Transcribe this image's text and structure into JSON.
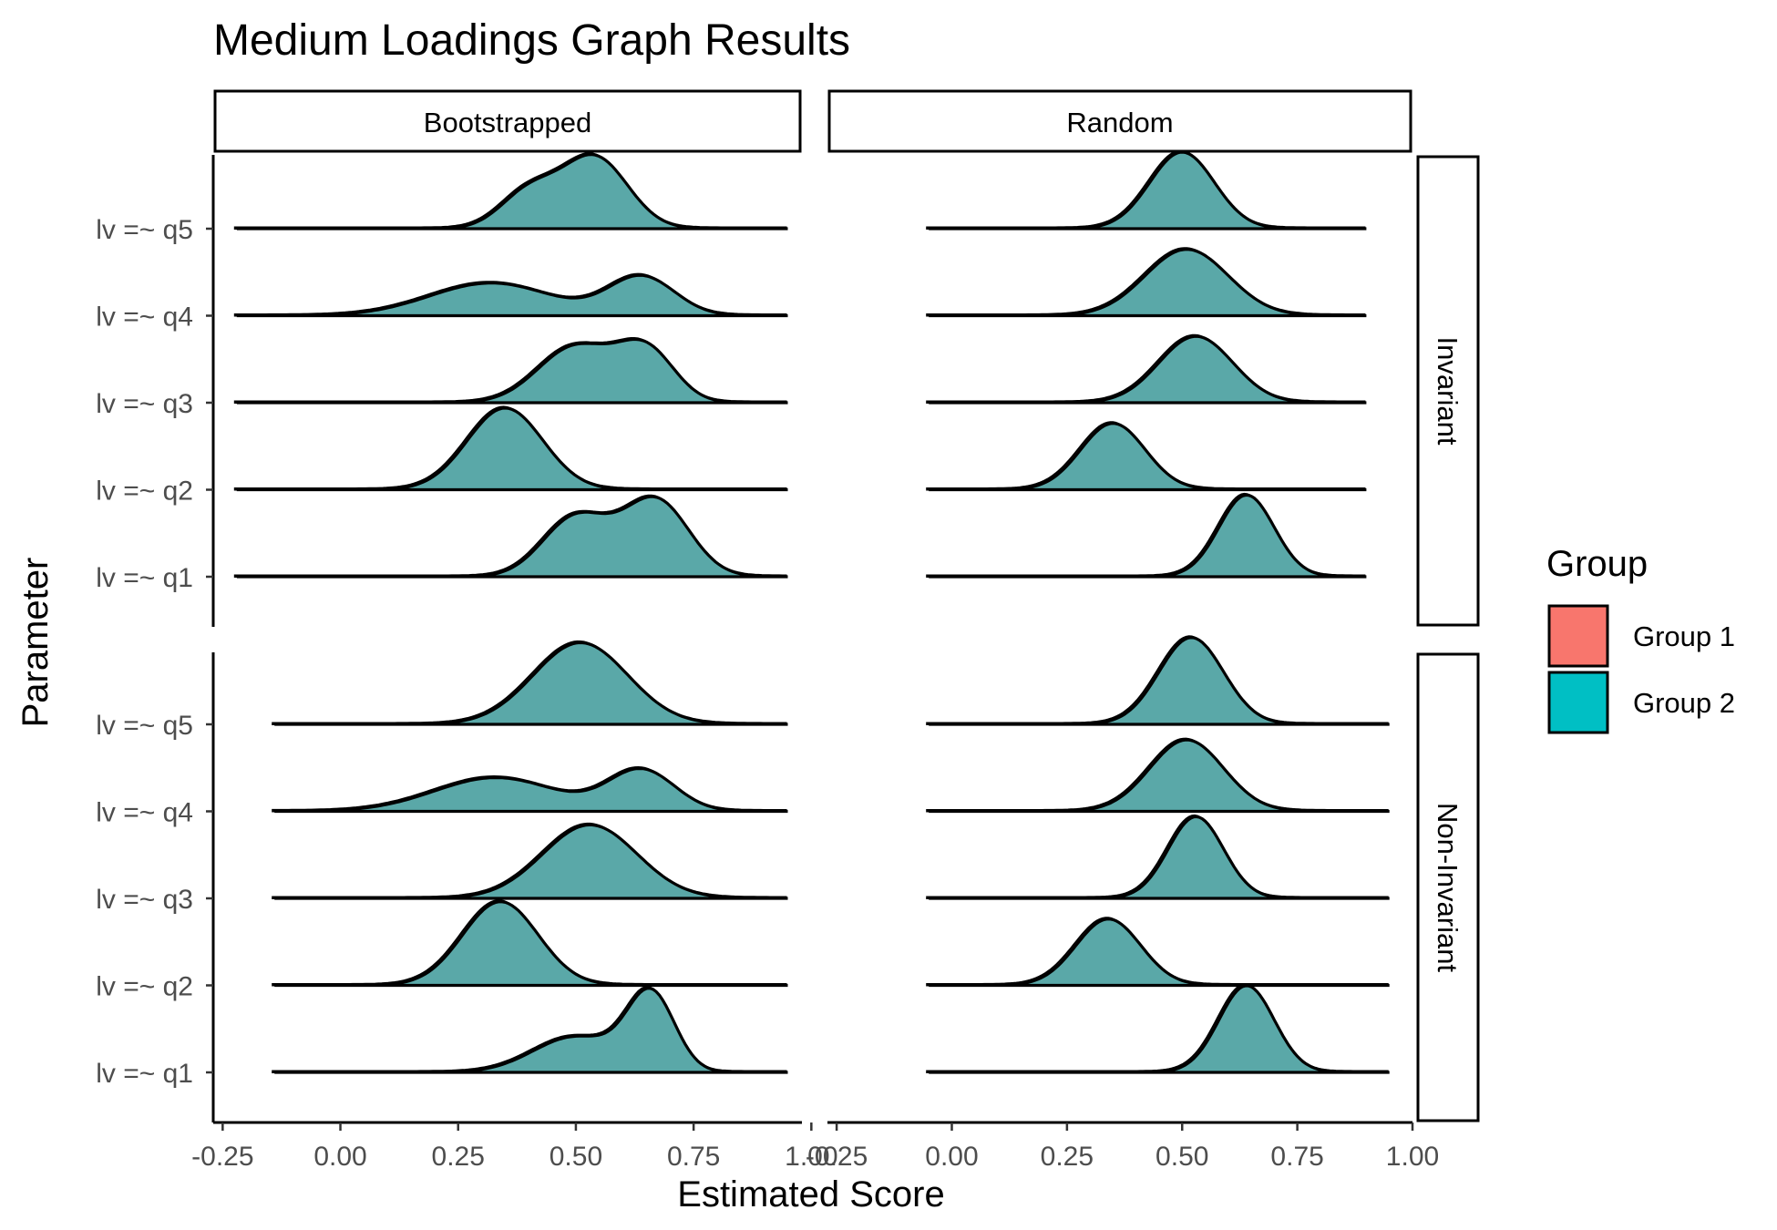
{
  "chart_data": {
    "type": "ridgeline-density",
    "title": "Medium Loadings Graph Results",
    "xlabel": "Estimated Score",
    "ylabel": "Parameter",
    "columns": [
      "Bootstrapped",
      "Random"
    ],
    "rows": [
      "Invariant",
      "Non-Invariant"
    ],
    "parameters": [
      "lv =~ q1",
      "lv =~ q2",
      "lv =~ q3",
      "lv =~ q4",
      "lv =~ q5"
    ],
    "x_ticks": {
      "Bootstrapped": [
        "-0.25",
        "0.00",
        "0.25",
        "0.50",
        "0.75",
        "1.00"
      ],
      "Random": [
        "-0.25",
        "0.00",
        "0.25",
        "0.50",
        "0.75",
        "1.00"
      ]
    },
    "xlim": {
      "Bootstrapped": [
        -0.27,
        0.98
      ],
      "Random": [
        -0.27,
        1.0
      ]
    },
    "legend": {
      "title": "Group",
      "position": "right",
      "entries": [
        {
          "label": "Group 1",
          "color": "#F8766D"
        },
        {
          "label": "Group 2",
          "color": "#00BFC4"
        }
      ]
    },
    "fill_overlap_color": "#5aa8a8",
    "panels": [
      {
        "column": "Bootstrapped",
        "row": "Invariant",
        "ridges": [
          {
            "parameter": "lv =~ q1",
            "range": [
              -0.22,
              0.95
            ],
            "peaks": [
              [
                0.5,
                0.07,
                0.58
              ],
              [
                0.67,
                0.07,
                0.75
              ]
            ]
          },
          {
            "parameter": "lv =~ q2",
            "range": [
              -0.22,
              0.95
            ],
            "peaks": [
              [
                0.35,
                0.08,
                0.8
              ]
            ]
          },
          {
            "parameter": "lv =~ q3",
            "range": [
              -0.22,
              0.95
            ],
            "peaks": [
              [
                0.5,
                0.08,
                0.55
              ],
              [
                0.65,
                0.06,
                0.5
              ]
            ]
          },
          {
            "parameter": "lv =~ q4",
            "range": [
              -0.22,
              0.95
            ],
            "peaks": [
              [
                0.32,
                0.13,
                0.32
              ],
              [
                0.64,
                0.07,
                0.38
              ]
            ]
          },
          {
            "parameter": "lv =~ q5",
            "range": [
              -0.22,
              0.95
            ],
            "peaks": [
              [
                0.4,
                0.06,
                0.35
              ],
              [
                0.54,
                0.07,
                0.7
              ]
            ]
          }
        ]
      },
      {
        "column": "Random",
        "row": "Invariant",
        "ridges": [
          {
            "parameter": "lv =~ q1",
            "range": [
              -0.05,
              0.9
            ],
            "peaks": [
              [
                0.64,
                0.06,
                0.8
              ]
            ]
          },
          {
            "parameter": "lv =~ q2",
            "range": [
              -0.05,
              0.9
            ],
            "peaks": [
              [
                0.35,
                0.07,
                0.65
              ]
            ]
          },
          {
            "parameter": "lv =~ q3",
            "range": [
              -0.05,
              0.9
            ],
            "peaks": [
              [
                0.53,
                0.08,
                0.65
              ]
            ]
          },
          {
            "parameter": "lv =~ q4",
            "range": [
              -0.05,
              0.9
            ],
            "peaks": [
              [
                0.51,
                0.09,
                0.65
              ]
            ]
          },
          {
            "parameter": "lv =~ q5",
            "range": [
              -0.05,
              0.9
            ],
            "peaks": [
              [
                0.5,
                0.07,
                0.75
              ]
            ]
          }
        ]
      },
      {
        "column": "Bootstrapped",
        "row": "Non-Invariant",
        "ridges": [
          {
            "parameter": "lv =~ q1",
            "range": [
              -0.14,
              0.95
            ],
            "peaks": [
              [
                0.5,
                0.09,
                0.35
              ],
              [
                0.66,
                0.05,
                0.75
              ]
            ]
          },
          {
            "parameter": "lv =~ q2",
            "range": [
              -0.14,
              0.95
            ],
            "peaks": [
              [
                0.34,
                0.08,
                0.82
              ]
            ]
          },
          {
            "parameter": "lv =~ q3",
            "range": [
              -0.14,
              0.95
            ],
            "peaks": [
              [
                0.53,
                0.1,
                0.72
              ]
            ]
          },
          {
            "parameter": "lv =~ q4",
            "range": [
              -0.14,
              0.95
            ],
            "peaks": [
              [
                0.33,
                0.13,
                0.33
              ],
              [
                0.64,
                0.07,
                0.4
              ]
            ]
          },
          {
            "parameter": "lv =~ q5",
            "range": [
              -0.14,
              0.95
            ],
            "peaks": [
              [
                0.51,
                0.1,
                0.8
              ]
            ]
          }
        ]
      },
      {
        "column": "Random",
        "row": "Non-Invariant",
        "ridges": [
          {
            "parameter": "lv =~ q1",
            "range": [
              -0.05,
              0.95
            ],
            "peaks": [
              [
                0.64,
                0.06,
                0.85
              ]
            ]
          },
          {
            "parameter": "lv =~ q2",
            "range": [
              -0.05,
              0.95
            ],
            "peaks": [
              [
                0.34,
                0.07,
                0.65
              ]
            ]
          },
          {
            "parameter": "lv =~ q3",
            "range": [
              -0.05,
              0.95
            ],
            "peaks": [
              [
                0.53,
                0.06,
                0.8
              ]
            ]
          },
          {
            "parameter": "lv =~ q4",
            "range": [
              -0.05,
              0.95
            ],
            "peaks": [
              [
                0.51,
                0.08,
                0.7
              ]
            ]
          },
          {
            "parameter": "lv =~ q5",
            "range": [
              -0.05,
              0.95
            ],
            "peaks": [
              [
                0.52,
                0.07,
                0.85
              ]
            ]
          }
        ]
      }
    ]
  }
}
